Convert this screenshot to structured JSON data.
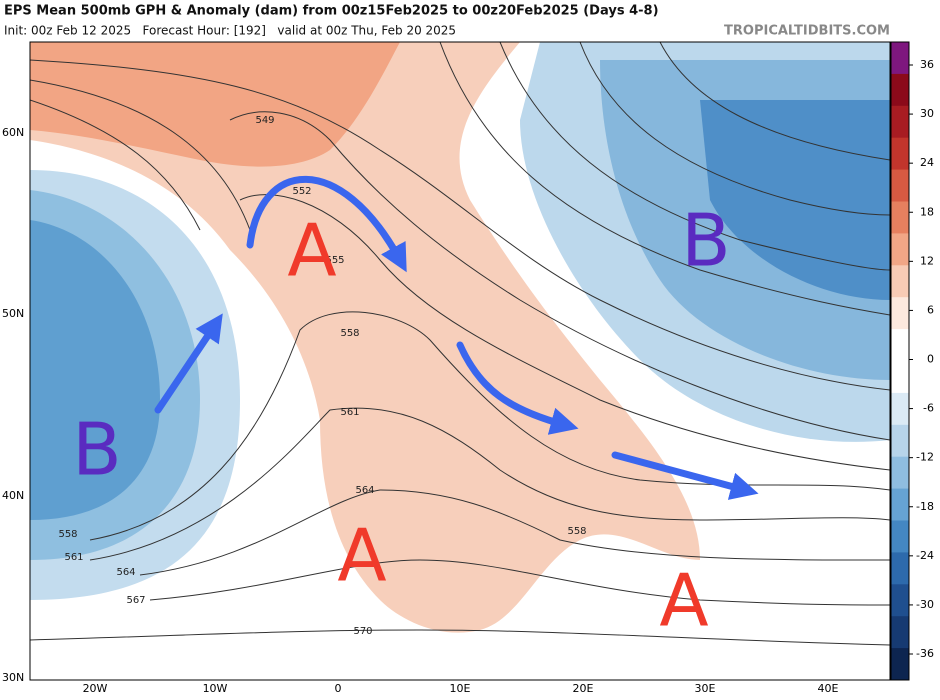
{
  "header": {
    "title": "EPS Mean 500mb GPH & Anomaly (dam) from 00z15Feb2025 to 00z20Feb2025 (Days 4-8)",
    "subtitle": "Init: 00z Feb 12 2025   Forecast Hour: [192]   valid at 00z Thu, Feb 20 2025",
    "source": "TROPICALTIDBITS.COM"
  },
  "colorbar": {
    "ticks": [
      36,
      30,
      24,
      18,
      12,
      6,
      0,
      -6,
      -12,
      -18,
      -24,
      -30,
      -36
    ]
  },
  "map": {
    "latitude_labels": [
      "60N",
      "50N",
      "40N",
      "30N"
    ],
    "longitude_labels": [
      "20W",
      "10W",
      "0",
      "10E",
      "20E",
      "30E",
      "40E"
    ],
    "contour_labels": [
      "549",
      "552",
      "555",
      "558",
      "561",
      "564",
      "558",
      "558",
      "561",
      "564",
      "567",
      "570"
    ],
    "annotations": [
      "A",
      "B",
      "B",
      "A",
      "A"
    ]
  }
}
